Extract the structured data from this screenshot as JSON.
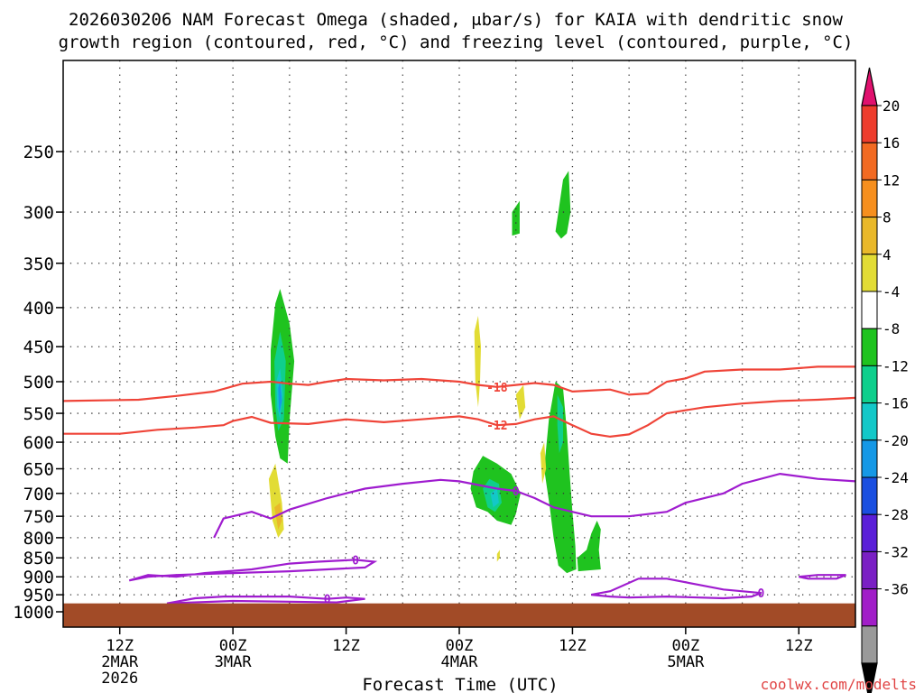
{
  "chart_data": {
    "type": "time-height cross-section",
    "title_line1": "2026030206 NAM Forecast Omega (shaded, μbar/s) for KAIA with dendritic snow",
    "title_line2": "growth region (contoured, red, °C) and freezing level (contoured, purple, °C)",
    "xlabel": "Forecast Time (UTC)",
    "watermark": "coolwx.com/modelts",
    "x_range_hours": [
      0,
      84
    ],
    "y_levels_hPa": [
      250,
      300,
      350,
      400,
      450,
      500,
      550,
      600,
      650,
      700,
      750,
      800,
      850,
      900,
      950,
      1000
    ],
    "y_range_hPa": [
      190,
      1000
    ],
    "x_ticks": [
      {
        "hour": 6,
        "lines": [
          "12Z",
          "2MAR",
          "2026"
        ]
      },
      {
        "hour": 18,
        "lines": [
          "00Z",
          "3MAR"
        ]
      },
      {
        "hour": 30,
        "lines": [
          "12Z"
        ]
      },
      {
        "hour": 42,
        "lines": [
          "00Z",
          "4MAR"
        ]
      },
      {
        "hour": 54,
        "lines": [
          "12Z"
        ]
      },
      {
        "hour": 66,
        "lines": [
          "00Z",
          "5MAR"
        ]
      },
      {
        "hour": 78,
        "lines": [
          "12Z"
        ]
      }
    ],
    "x_gridlines_hours": [
      6,
      12,
      18,
      24,
      30,
      36,
      42,
      48,
      54,
      60,
      66,
      72,
      78
    ],
    "ground_pressure_hPa": 975,
    "colorbar": {
      "labels": [
        "20",
        "16",
        "12",
        "8",
        "4",
        "-4",
        "-8",
        "-12",
        "-16",
        "-20",
        "-24",
        "-28",
        "-32",
        "-36"
      ],
      "colors": [
        "#e0116e",
        "#ee3d2d",
        "#f26a22",
        "#f68f1e",
        "#e9b82a",
        "#e2dc35",
        "#ffffff",
        "#1fc31f",
        "#0fcf8c",
        "#13c8c8",
        "#1598e6",
        "#1a4fe0",
        "#5a1fd8",
        "#7a1fc4",
        "#a11ec8",
        "#9a9a9a",
        "#000000"
      ]
    },
    "contours": [
      {
        "name": "-18 C",
        "label": "-18",
        "color": "#ef4438",
        "points": [
          [
            0,
            530
          ],
          [
            8,
            528
          ],
          [
            12,
            522
          ],
          [
            16,
            515
          ],
          [
            19,
            503
          ],
          [
            22,
            500
          ],
          [
            24,
            503
          ],
          [
            26,
            505
          ],
          [
            28,
            500
          ],
          [
            30,
            496
          ],
          [
            34,
            498
          ],
          [
            38,
            496
          ],
          [
            42,
            500
          ],
          [
            44,
            505
          ],
          [
            46,
            508
          ],
          [
            48,
            505
          ],
          [
            50,
            502
          ],
          [
            52,
            505
          ],
          [
            54,
            515
          ],
          [
            58,
            512
          ],
          [
            60,
            520
          ],
          [
            62,
            518
          ],
          [
            64,
            500
          ],
          [
            66,
            495
          ],
          [
            68,
            485
          ],
          [
            72,
            482
          ],
          [
            76,
            482
          ],
          [
            80,
            478
          ],
          [
            84,
            478
          ]
        ]
      },
      {
        "name": "-12 C",
        "label": "-12",
        "color": "#ef4438",
        "points": [
          [
            0,
            585
          ],
          [
            6,
            585
          ],
          [
            10,
            578
          ],
          [
            14,
            574
          ],
          [
            17,
            570
          ],
          [
            18,
            563
          ],
          [
            20,
            556
          ],
          [
            22,
            566
          ],
          [
            26,
            568
          ],
          [
            30,
            560
          ],
          [
            34,
            565
          ],
          [
            38,
            560
          ],
          [
            42,
            555
          ],
          [
            44,
            560
          ],
          [
            46,
            570
          ],
          [
            48,
            568
          ],
          [
            50,
            560
          ],
          [
            52,
            555
          ],
          [
            54,
            570
          ],
          [
            56,
            585
          ],
          [
            58,
            590
          ],
          [
            60,
            586
          ],
          [
            62,
            570
          ],
          [
            64,
            550
          ],
          [
            68,
            540
          ],
          [
            72,
            534
          ],
          [
            76,
            530
          ],
          [
            80,
            528
          ],
          [
            84,
            525
          ]
        ]
      },
      {
        "name": "0 C freezing level",
        "label": "0",
        "color": "#9f1ccf",
        "points": [
          [
            16,
            800
          ],
          [
            17,
            755
          ],
          [
            20,
            740
          ],
          [
            22,
            755
          ],
          [
            24,
            735
          ],
          [
            28,
            710
          ],
          [
            32,
            690
          ],
          [
            36,
            680
          ],
          [
            40,
            672
          ],
          [
            42,
            675
          ],
          [
            46,
            690
          ],
          [
            48,
            695
          ],
          [
            50,
            710
          ],
          [
            52,
            730
          ],
          [
            56,
            750
          ],
          [
            60,
            750
          ],
          [
            64,
            740
          ],
          [
            66,
            720
          ],
          [
            70,
            700
          ],
          [
            72,
            680
          ],
          [
            76,
            660
          ],
          [
            80,
            670
          ],
          [
            84,
            675
          ]
        ]
      },
      {
        "name": "0 C secondary",
        "label": "0",
        "color": "#9f1ccf",
        "points": [
          [
            7,
            910
          ],
          [
            9,
            895
          ],
          [
            12,
            900
          ],
          [
            15,
            890
          ],
          [
            20,
            880
          ],
          [
            24,
            865
          ],
          [
            27,
            860
          ],
          [
            31,
            855
          ],
          [
            33,
            860
          ],
          [
            32,
            875
          ],
          [
            28,
            880
          ],
          [
            24,
            885
          ],
          [
            18,
            890
          ],
          [
            12,
            895
          ],
          [
            9,
            900
          ]
        ]
      },
      {
        "name": "0 C lower",
        "label": "0",
        "color": "#9f1ccf",
        "points": [
          [
            11,
            975
          ],
          [
            14,
            960
          ],
          [
            17,
            955
          ],
          [
            20,
            955
          ],
          [
            24,
            955
          ],
          [
            28,
            962
          ],
          [
            30,
            958
          ],
          [
            32,
            962
          ],
          [
            29,
            972
          ],
          [
            24,
            970
          ],
          [
            18,
            968
          ]
        ]
      },
      {
        "name": "0 C right",
        "label": "0",
        "color": "#9f1ccf",
        "points": [
          [
            56,
            950
          ],
          [
            58,
            940
          ],
          [
            61,
            905
          ],
          [
            64,
            905
          ],
          [
            67,
            920
          ],
          [
            70,
            935
          ],
          [
            74,
            945
          ],
          [
            73,
            955
          ],
          [
            70,
            960
          ],
          [
            64,
            955
          ],
          [
            60,
            958
          ],
          [
            58,
            955
          ]
        ]
      },
      {
        "name": "0 C far right",
        "label": "",
        "color": "#9f1ccf",
        "points": [
          [
            78,
            900
          ],
          [
            80,
            895
          ],
          [
            83,
            895
          ],
          [
            82,
            905
          ],
          [
            79,
            905
          ]
        ]
      }
    ],
    "omega_regions": [
      {
        "value": "-4",
        "color": "#1fc31f",
        "points": [
          [
            22,
            455
          ],
          [
            22.5,
            395
          ],
          [
            23,
            378
          ],
          [
            24,
            420
          ],
          [
            24.5,
            470
          ],
          [
            24,
            560
          ],
          [
            23.8,
            640
          ],
          [
            23,
            630
          ],
          [
            22.5,
            590
          ],
          [
            22,
            520
          ]
        ]
      },
      {
        "value": "-8",
        "color": "#0fcf8c",
        "points": [
          [
            22.4,
            470
          ],
          [
            23,
            430
          ],
          [
            23.6,
            470
          ],
          [
            23.4,
            560
          ],
          [
            22.8,
            580
          ],
          [
            22.5,
            540
          ]
        ]
      },
      {
        "value": "-12",
        "color": "#13c8c8",
        "points": [
          [
            22.6,
            500
          ],
          [
            23,
            480
          ],
          [
            23.3,
            520
          ],
          [
            23,
            560
          ],
          [
            22.7,
            540
          ]
        ]
      },
      {
        "value": "-16",
        "color": "#1598e6",
        "points": [
          [
            22.8,
            510
          ],
          [
            23,
            500
          ],
          [
            23.2,
            530
          ],
          [
            22.9,
            550
          ]
        ]
      },
      {
        "value": "4",
        "color": "#e2dc35",
        "points": [
          [
            21.8,
            670
          ],
          [
            22.5,
            640
          ],
          [
            23.2,
            720
          ],
          [
            23.4,
            780
          ],
          [
            22.8,
            800
          ],
          [
            22.2,
            760
          ]
        ]
      },
      {
        "value": "8",
        "color": "#e9b82a",
        "points": [
          [
            22.4,
            730
          ],
          [
            23,
            720
          ],
          [
            23.2,
            760
          ],
          [
            22.8,
            780
          ]
        ]
      },
      {
        "value": "-4",
        "color": "#1fc31f",
        "points": [
          [
            43.5,
            655
          ],
          [
            44.5,
            625
          ],
          [
            46,
            640
          ],
          [
            47.5,
            660
          ],
          [
            48.5,
            700
          ],
          [
            48,
            745
          ],
          [
            47.5,
            770
          ],
          [
            46,
            760
          ],
          [
            45,
            740
          ],
          [
            43.8,
            730
          ],
          [
            43.2,
            690
          ]
        ]
      },
      {
        "value": "-8",
        "color": "#0fcf8c",
        "points": [
          [
            44.5,
            690
          ],
          [
            45.2,
            670
          ],
          [
            46.2,
            680
          ],
          [
            46.5,
            720
          ],
          [
            45.8,
            740
          ],
          [
            45,
            730
          ]
        ]
      },
      {
        "value": "-12",
        "color": "#13c8c8",
        "points": [
          [
            45.3,
            700
          ],
          [
            46,
            690
          ],
          [
            46.2,
            720
          ],
          [
            45.6,
            730
          ]
        ]
      },
      {
        "value": "-4",
        "color": "#1fc31f",
        "points": [
          [
            51.5,
            560
          ],
          [
            52.2,
            500
          ],
          [
            53,
            510
          ],
          [
            53.4,
            580
          ],
          [
            53.7,
            660
          ],
          [
            54,
            740
          ],
          [
            54.3,
            820
          ],
          [
            54.4,
            880
          ],
          [
            53.4,
            890
          ],
          [
            52.5,
            870
          ],
          [
            52,
            800
          ],
          [
            51.6,
            730
          ],
          [
            51,
            650
          ]
        ]
      },
      {
        "value": "-8",
        "color": "#0fcf8c",
        "points": [
          [
            52.4,
            520
          ],
          [
            53,
            540
          ],
          [
            53,
            600
          ],
          [
            52.6,
            620
          ],
          [
            52.4,
            570
          ]
        ]
      },
      {
        "value": "-4",
        "color": "#1fc31f",
        "points": [
          [
            52.2,
            318
          ],
          [
            52.5,
            300
          ],
          [
            53,
            272
          ],
          [
            53.6,
            265
          ],
          [
            53.8,
            300
          ],
          [
            53.4,
            320
          ],
          [
            52.8,
            325
          ]
        ]
      },
      {
        "value": "-4",
        "color": "#1fc31f",
        "points": [
          [
            47.6,
            300
          ],
          [
            48.4,
            290
          ],
          [
            48.4,
            320
          ],
          [
            47.6,
            322
          ]
        ]
      },
      {
        "value": "-4",
        "color": "#1fc31f",
        "points": [
          [
            54.5,
            850
          ],
          [
            55.5,
            830
          ],
          [
            56,
            790
          ],
          [
            56.6,
            760
          ],
          [
            57,
            780
          ],
          [
            56.8,
            830
          ],
          [
            57,
            880
          ],
          [
            54.6,
            885
          ]
        ]
      },
      {
        "value": "4",
        "color": "#e2dc35",
        "points": [
          [
            43.6,
            430
          ],
          [
            44,
            410
          ],
          [
            44.3,
            450
          ],
          [
            44.2,
            500
          ],
          [
            44,
            540
          ],
          [
            43.7,
            500
          ]
        ]
      },
      {
        "value": "4",
        "color": "#e2dc35",
        "points": [
          [
            48,
            520
          ],
          [
            48.8,
            505
          ],
          [
            49,
            540
          ],
          [
            48.4,
            560
          ]
        ]
      },
      {
        "value": "4",
        "color": "#e2dc35",
        "points": [
          [
            50.6,
            620
          ],
          [
            51,
            600
          ],
          [
            51.2,
            650
          ],
          [
            50.8,
            680
          ]
        ]
      },
      {
        "value": "4",
        "color": "#e2dc35",
        "points": [
          [
            46,
            840
          ],
          [
            46.3,
            830
          ],
          [
            46.3,
            850
          ],
          [
            46,
            860
          ]
        ]
      }
    ]
  }
}
